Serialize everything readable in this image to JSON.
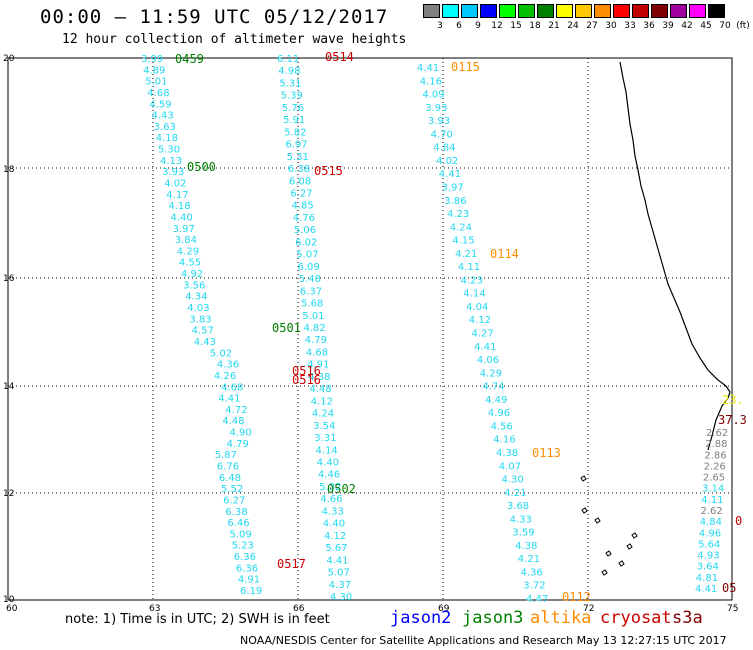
{
  "header": {
    "title": "00:00 – 11:59 UTC 05/12/2017",
    "subtitle": "12 hour collection of altimeter wave heights"
  },
  "legend": {
    "unit": "(ft)",
    "bins": [
      {
        "label": "3",
        "color": "#808080"
      },
      {
        "label": "6",
        "color": "#00ffff"
      },
      {
        "label": "9",
        "color": "#00c8ff"
      },
      {
        "label": "12",
        "color": "#0000ff"
      },
      {
        "label": "15",
        "color": "#00ff00"
      },
      {
        "label": "18",
        "color": "#00c000"
      },
      {
        "label": "21",
        "color": "#008000"
      },
      {
        "label": "24",
        "color": "#ffff00"
      },
      {
        "label": "27",
        "color": "#ffc800"
      },
      {
        "label": "30",
        "color": "#ff8c00"
      },
      {
        "label": "33",
        "color": "#ff0000"
      },
      {
        "label": "36",
        "color": "#c00000"
      },
      {
        "label": "39",
        "color": "#800000"
      },
      {
        "label": "42",
        "color": "#a000a0"
      },
      {
        "label": "45",
        "color": "#ff00ff"
      },
      {
        "label": "70",
        "color": "#000000"
      }
    ]
  },
  "axes": {
    "x_labels": [
      "60",
      "63",
      "66",
      "69",
      "72",
      "75"
    ],
    "y_labels": [
      "10",
      "12",
      "14",
      "16",
      "18",
      "20"
    ]
  },
  "tracks": [
    {
      "values": [
        "3.99",
        "4.89",
        "5.01",
        "4.68",
        "4.59",
        "4.43",
        "3.63",
        "4.18",
        "5.30",
        "4.13",
        "3.93",
        "4.02",
        "4.17",
        "4.18",
        "4.40",
        "3.97",
        "3.84",
        "4.29",
        "4.55",
        "4.92",
        "3.56",
        "4.34",
        "4.03",
        "3.83",
        "4.57",
        "4.43",
        "5.02",
        "4.36",
        "4.26",
        "4.68",
        "4.41",
        "4.72",
        "4.48",
        "4.90",
        "4.79",
        "5.87",
        "6.76",
        "6.48",
        "5.52",
        "6.27",
        "6.38",
        "6.46",
        "5.09",
        "5.23",
        "6.36",
        "6.36",
        "4.91",
        "6.19"
      ]
    },
    {
      "values": [
        "6.11",
        "4.98",
        "5.31",
        "5.39",
        "5.76",
        "5.91",
        "5.82",
        "6.97",
        "5.31",
        "6.38",
        "6.08",
        "6.27",
        "4.85",
        "4.76",
        "5.06",
        "6.02",
        "5.07",
        "6.09",
        "5.48",
        "6.37",
        "5.68",
        "5.01",
        "4.82",
        "4.79",
        "4.68",
        "4.91",
        "4.38",
        "4.48",
        "4.12",
        "4.24",
        "3.54",
        "3.31",
        "4.14",
        "4.40",
        "4.46",
        "5.32",
        "4.66",
        "4.33",
        "4.40",
        "4.12",
        "5.67",
        "4.41",
        "5.07",
        "4.37",
        "4.30"
      ]
    },
    {
      "values": [
        "4.41",
        "4.16",
        "4.09",
        "3.93",
        "3.93",
        "4.70",
        "4.84",
        "4.02",
        "4.41",
        "3.97",
        "3.86",
        "4.23",
        "4.24",
        "4.15",
        "4.21",
        "4.11",
        "4.23",
        "4.14",
        "4.04",
        "4.12",
        "4.27",
        "4.41",
        "4.06",
        "4.29",
        "4.74",
        "4.49",
        "4.96",
        "4.56",
        "4.16",
        "4.38",
        "4.07",
        "4.30",
        "4.21",
        "3.68",
        "4.33",
        "3.59",
        "4.38",
        "4.21",
        "4.36",
        "3.72",
        "4.47"
      ]
    },
    {
      "values": [
        "2.62",
        "2.88",
        "2.86",
        "2.26",
        "2.65",
        "3.14",
        "4.11",
        "2.62",
        "4.84",
        "4.96",
        "5.64",
        "4.93",
        "3.64",
        "4.81",
        "4.41"
      ]
    }
  ],
  "pass_labels": [
    {
      "text": "0459",
      "color": "#008000"
    },
    {
      "text": "0500",
      "color": "#008000"
    },
    {
      "text": "0501",
      "color": "#008000"
    },
    {
      "text": "0502",
      "color": "#008000"
    },
    {
      "text": "0514",
      "color": "#cc0000"
    },
    {
      "text": "0515",
      "color": "#cc0000"
    },
    {
      "text": "0516",
      "color": "#cc0000"
    },
    {
      "text": "0516",
      "color": "#cc0000"
    },
    {
      "text": "0517",
      "color": "#cc0000"
    },
    {
      "text": "0115",
      "color": "#ff8c00"
    },
    {
      "text": "0114",
      "color": "#ff8c00"
    },
    {
      "text": "0113",
      "color": "#ff8c00"
    },
    {
      "text": "0112",
      "color": "#ff8c00"
    }
  ],
  "edge_labels": [
    {
      "text": "23.",
      "color": "#e6e600"
    },
    {
      "text": "37.3",
      "color": "#800000"
    },
    {
      "text": "0",
      "color": "#cc0000"
    },
    {
      "text": "05",
      "color": "#800000"
    }
  ],
  "footer": {
    "note": "note: 1) Time is in UTC; 2) SWH is in feet",
    "satellites": [
      {
        "name": "jason2",
        "color": "#0000ff"
      },
      {
        "name": "jason3",
        "color": "#008000"
      },
      {
        "name": "altika",
        "color": "#ff8c00"
      },
      {
        "name": "cryosat",
        "color": "#cc0000"
      },
      {
        "name": "s3a",
        "color": "#800000"
      }
    ],
    "credit": "NOAA/NESDIS Center for Satellite Applications and Research   May 13 12:27:15 UTC 2017"
  }
}
